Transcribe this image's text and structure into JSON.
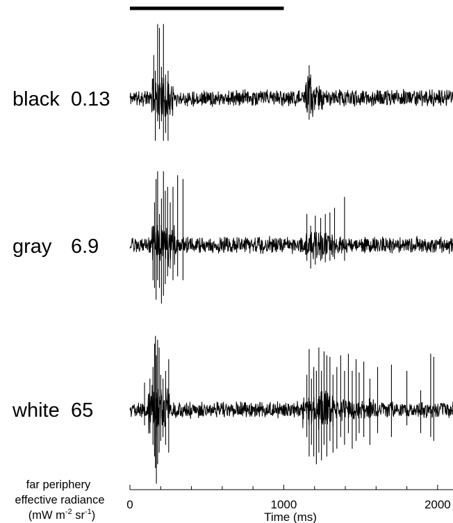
{
  "chart_data": {
    "type": "line",
    "x_unit": "ms",
    "xlim": [
      0,
      2100
    ],
    "x_ticks": [
      0,
      1000,
      2000
    ],
    "x_tick_labels": [
      "0",
      "1000",
      "2000"
    ],
    "x_minor_step": 200,
    "xlabel": "Time (ms)",
    "stimulus_bar": {
      "start": 0,
      "end": 1000
    },
    "corner_label": {
      "line1": "far periphery",
      "line2": "effective radiance",
      "line3_prefix": "(mW m",
      "line3_sup1": "-2",
      "line3_mid": " sr",
      "line3_sup2": "-1",
      "line3_suffix": ")"
    },
    "series": [
      {
        "name": "black",
        "value_label": "0.13",
        "color": "#000000",
        "noise_amplitude": 0.12,
        "seed": 11,
        "bursts": [
          {
            "start": 135,
            "end": 280,
            "amplitude": 0.3
          },
          {
            "start": 1140,
            "end": 1190,
            "amplitude": 0.32
          },
          {
            "start": 1190,
            "end": 1260,
            "amplitude": 0.18
          }
        ],
        "spikes": [
          {
            "t": 155,
            "up": 0.55,
            "down": 0.0
          },
          {
            "t": 165,
            "up": 0.35,
            "down": 0.55
          },
          {
            "t": 180,
            "up": 0.95,
            "down": 0.3
          },
          {
            "t": 192,
            "up": 0.9,
            "down": 0.4
          },
          {
            "t": 205,
            "up": 0.4,
            "down": 0.3
          },
          {
            "t": 218,
            "up": 0.95,
            "down": 0.55
          },
          {
            "t": 232,
            "up": 0.3,
            "down": 0.45
          },
          {
            "t": 248,
            "up": 0.35,
            "down": 0.55
          },
          {
            "t": 1165,
            "up": 0.42,
            "down": 0.28
          },
          {
            "t": 1175,
            "up": 0.3,
            "down": 0.2
          }
        ]
      },
      {
        "name": "gray",
        "value_label": "6.9",
        "color": "#000000",
        "noise_amplitude": 0.12,
        "seed": 29,
        "bursts": [
          {
            "start": 140,
            "end": 300,
            "amplitude": 0.3
          },
          {
            "start": 1140,
            "end": 1320,
            "amplitude": 0.22
          }
        ],
        "spikes": [
          {
            "t": 150,
            "up": 0.25,
            "down": 0.45
          },
          {
            "t": 160,
            "up": 0.55,
            "down": 0.55
          },
          {
            "t": 170,
            "up": 0.85,
            "down": 0.7
          },
          {
            "t": 180,
            "up": 0.95,
            "down": 0.45
          },
          {
            "t": 192,
            "up": 0.4,
            "down": 0.55
          },
          {
            "t": 205,
            "up": 0.6,
            "down": 0.75
          },
          {
            "t": 218,
            "up": 0.95,
            "down": 0.65
          },
          {
            "t": 230,
            "up": 0.7,
            "down": 0.5
          },
          {
            "t": 245,
            "up": 0.75,
            "down": 0.4
          },
          {
            "t": 262,
            "up": 0.55,
            "down": 0.3
          },
          {
            "t": 280,
            "up": 0.75,
            "down": 0.45
          },
          {
            "t": 310,
            "up": 0.9,
            "down": 0.4
          },
          {
            "t": 345,
            "up": 0.85,
            "down": 0.45
          },
          {
            "t": 1150,
            "up": 0.4,
            "down": 0.2
          },
          {
            "t": 1175,
            "up": 0.25,
            "down": 0.3
          },
          {
            "t": 1205,
            "up": 0.38,
            "down": 0.25
          },
          {
            "t": 1240,
            "up": 0.35,
            "down": 0.2
          },
          {
            "t": 1270,
            "up": 0.4,
            "down": 0.22
          },
          {
            "t": 1300,
            "up": 0.42,
            "down": 0.2
          },
          {
            "t": 1330,
            "up": 0.48,
            "down": 0.18
          },
          {
            "t": 1395,
            "up": 0.62,
            "down": 0.2
          }
        ]
      },
      {
        "name": "white",
        "value_label": "65",
        "color": "#000000",
        "noise_amplitude": 0.12,
        "seed": 47,
        "bursts": [
          {
            "start": 120,
            "end": 260,
            "amplitude": 0.34
          },
          {
            "start": 1120,
            "end": 1330,
            "amplitude": 0.26
          },
          {
            "start": 1330,
            "end": 1600,
            "amplitude": 0.15
          }
        ],
        "spikes": [
          {
            "t": 95,
            "up": 0.35,
            "down": 0.2
          },
          {
            "t": 130,
            "up": 0.4,
            "down": 0.3
          },
          {
            "t": 150,
            "up": 0.55,
            "down": 0.45
          },
          {
            "t": 160,
            "up": 0.85,
            "down": 0.6
          },
          {
            "t": 166,
            "up": 0.95,
            "down": 0.75
          },
          {
            "t": 172,
            "up": 0.7,
            "down": 0.95
          },
          {
            "t": 180,
            "up": 0.9,
            "down": 0.7
          },
          {
            "t": 190,
            "up": 0.8,
            "down": 0.55
          },
          {
            "t": 200,
            "up": 0.45,
            "down": 0.4
          },
          {
            "t": 215,
            "up": 0.4,
            "down": 0.35
          },
          {
            "t": 232,
            "up": 0.5,
            "down": 0.45
          },
          {
            "t": 252,
            "up": 0.65,
            "down": 0.55
          },
          {
            "t": 1150,
            "up": 0.45,
            "down": 0.35
          },
          {
            "t": 1165,
            "up": 0.78,
            "down": 0.6
          },
          {
            "t": 1180,
            "up": 0.4,
            "down": 0.45
          },
          {
            "t": 1195,
            "up": 0.55,
            "down": 0.6
          },
          {
            "t": 1212,
            "up": 0.5,
            "down": 0.7
          },
          {
            "t": 1228,
            "up": 0.8,
            "down": 0.55
          },
          {
            "t": 1245,
            "up": 0.5,
            "down": 0.65
          },
          {
            "t": 1262,
            "up": 0.75,
            "down": 0.45
          },
          {
            "t": 1280,
            "up": 0.7,
            "down": 0.6
          },
          {
            "t": 1300,
            "up": 0.68,
            "down": 0.4
          },
          {
            "t": 1320,
            "up": 0.45,
            "down": 0.55
          },
          {
            "t": 1345,
            "up": 0.55,
            "down": 0.5
          },
          {
            "t": 1370,
            "up": 0.7,
            "down": 0.35
          },
          {
            "t": 1395,
            "up": 0.5,
            "down": 0.45
          },
          {
            "t": 1420,
            "up": 0.72,
            "down": 0.3
          },
          {
            "t": 1445,
            "up": 0.5,
            "down": 0.5
          },
          {
            "t": 1470,
            "up": 0.65,
            "down": 0.4
          },
          {
            "t": 1490,
            "up": 0.48,
            "down": 0.3
          },
          {
            "t": 1520,
            "up": 0.62,
            "down": 0.35
          },
          {
            "t": 1560,
            "up": 0.4,
            "down": 0.45
          },
          {
            "t": 1610,
            "up": 0.55,
            "down": 0.3
          },
          {
            "t": 1700,
            "up": 0.58,
            "down": 0.35
          },
          {
            "t": 1800,
            "up": 0.5,
            "down": 0.2
          },
          {
            "t": 1890,
            "up": 0.25,
            "down": 0.3
          },
          {
            "t": 1955,
            "up": 0.72,
            "down": 0.35
          },
          {
            "t": 1975,
            "up": 0.68,
            "down": 0.4
          }
        ]
      }
    ]
  }
}
